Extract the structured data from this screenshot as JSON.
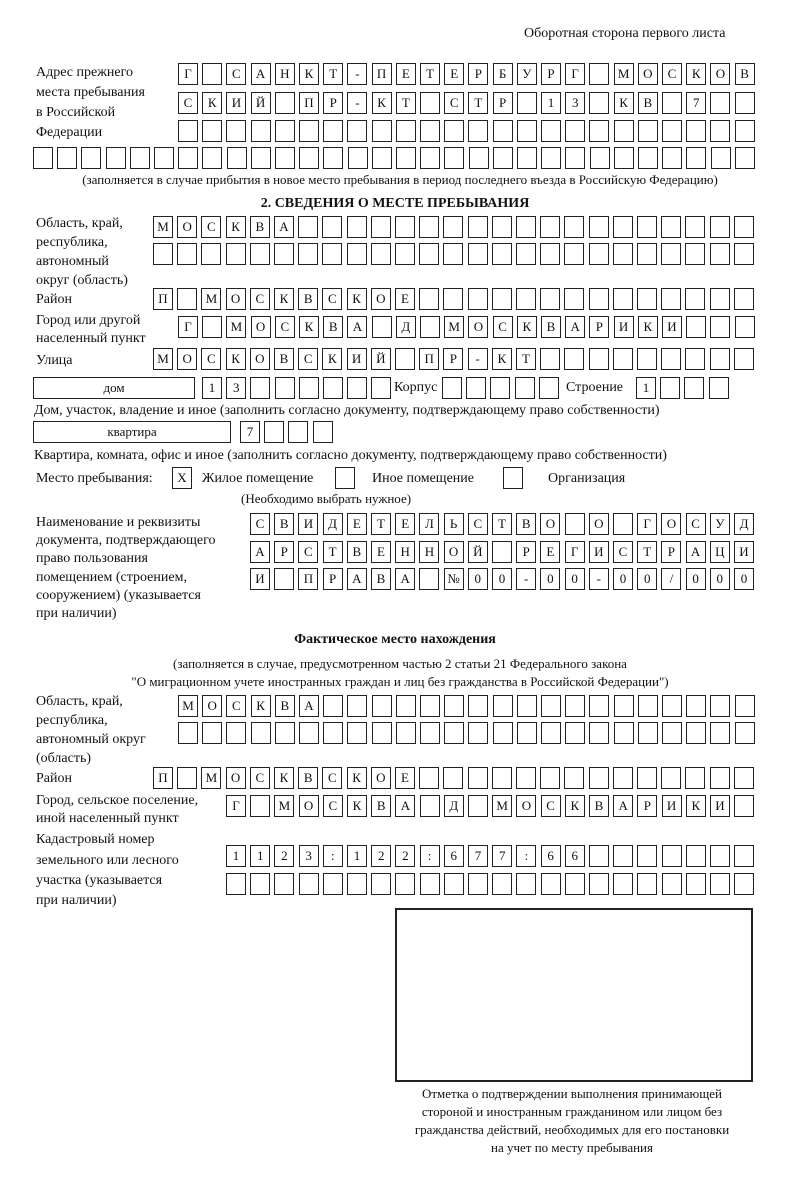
{
  "page_header": "Оборотная сторона первого листа",
  "previous_address": {
    "label": [
      "Адрес прежнего",
      "места пребывания",
      "в Российской",
      "Федерации"
    ],
    "rows": [
      [
        "Г",
        "",
        "С",
        "А",
        "Н",
        "К",
        "Т",
        "-",
        "П",
        "Е",
        "Т",
        "Е",
        "Р",
        "Б",
        "У",
        "Р",
        "Г",
        "",
        "М",
        "О",
        "С",
        "К",
        "О",
        "В"
      ],
      [
        "С",
        "К",
        "И",
        "Й",
        "",
        "П",
        "Р",
        "-",
        "К",
        "Т",
        "",
        "С",
        "Т",
        "Р",
        "",
        "1",
        "3",
        "",
        "К",
        "В",
        "",
        "7",
        "",
        ""
      ],
      [
        "",
        "",
        "",
        "",
        "",
        "",
        "",
        "",
        "",
        "",
        "",
        "",
        "",
        "",
        "",
        "",
        "",
        "",
        "",
        "",
        "",
        "",
        "",
        ""
      ],
      [
        "",
        "",
        "",
        "",
        "",
        "",
        "",
        "",
        "",
        "",
        "",
        "",
        "",
        "",
        "",
        "",
        "",
        "",
        "",
        "",
        "",
        "",
        "",
        "",
        "",
        "",
        "",
        "",
        "",
        ""
      ]
    ],
    "note": "(заполняется в случае прибытия в новое место пребывания в период последнего въезда в Российскую Федерацию)"
  },
  "section2": {
    "title": "2. СВЕДЕНИЯ О МЕСТЕ ПРЕБЫВАНИЯ",
    "region_label": [
      "Область, край,",
      "республика,",
      "автономный",
      "округ (область)"
    ],
    "region_rows": [
      [
        "М",
        "О",
        "С",
        "К",
        "В",
        "А",
        "",
        "",
        "",
        "",
        "",
        "",
        "",
        "",
        "",
        "",
        "",
        "",
        "",
        "",
        "",
        "",
        "",
        "",
        ""
      ],
      [
        "",
        "",
        "",
        "",
        "",
        "",
        "",
        "",
        "",
        "",
        "",
        "",
        "",
        "",
        "",
        "",
        "",
        "",
        "",
        "",
        "",
        "",
        "",
        "",
        ""
      ]
    ],
    "district_label": "Район",
    "district_row": [
      "П",
      "",
      "М",
      "О",
      "С",
      "К",
      "В",
      "С",
      "К",
      "О",
      "Е",
      "",
      "",
      "",
      "",
      "",
      "",
      "",
      "",
      "",
      "",
      "",
      "",
      "",
      ""
    ],
    "city_label": [
      "Город или другой",
      "населенный пункт"
    ],
    "city_row": [
      "Г",
      "",
      "М",
      "О",
      "С",
      "К",
      "В",
      "А",
      "",
      "Д",
      "",
      "М",
      "О",
      "С",
      "К",
      "В",
      "А",
      "Р",
      "И",
      "К",
      "И",
      "",
      "",
      ""
    ],
    "street_label": "Улица",
    "street_row": [
      "М",
      "О",
      "С",
      "К",
      "О",
      "В",
      "С",
      "К",
      "И",
      "Й",
      "",
      "П",
      "Р",
      "-",
      "К",
      "Т",
      "",
      "",
      "",
      "",
      "",
      "",
      "",
      "",
      ""
    ],
    "house_type": "дом",
    "house_number": [
      "1",
      "3",
      "",
      "",
      "",
      "",
      "",
      ""
    ],
    "korpus_label": "Корпус",
    "korpus": [
      "",
      "",
      "",
      "",
      ""
    ],
    "building_label": "Строение",
    "building": [
      "1",
      "",
      "",
      ""
    ],
    "house_note": "Дом, участок, владение и иное (заполнить согласно документу, подтверждающему право собственности)",
    "flat_type": "квартира",
    "flat_number": [
      "7",
      "",
      "",
      ""
    ],
    "flat_note": "Квартира, комната, офис и иное (заполнить согласно документу, подтверждающему право собственности)",
    "stay_label": "Место пребывания:",
    "stay_options": [
      {
        "label": "Жилое помещение",
        "mark": "X"
      },
      {
        "label": "Иное помещение",
        "mark": ""
      },
      {
        "label": "Организация",
        "mark": ""
      }
    ],
    "stay_note": "(Необходимо выбрать нужное)",
    "doc_label": [
      "Наименование и реквизиты",
      "документа, подтверждающего",
      "право пользования",
      "помещением (строением,",
      "сооружением) (указывается",
      "при наличии)"
    ],
    "doc_rows": [
      [
        "С",
        "В",
        "И",
        "Д",
        "Е",
        "Т",
        "Е",
        "Л",
        "Ь",
        "С",
        "Т",
        "В",
        "О",
        "",
        "О",
        "",
        "Г",
        "О",
        "С",
        "У",
        "Д"
      ],
      [
        "А",
        "Р",
        "С",
        "Т",
        "В",
        "Е",
        "Н",
        "Н",
        "О",
        "Й",
        "",
        "Р",
        "Е",
        "Г",
        "И",
        "С",
        "Т",
        "Р",
        "А",
        "Ц",
        "И"
      ],
      [
        "И",
        "",
        "П",
        "Р",
        "А",
        "В",
        "А",
        "",
        "№",
        "0",
        "0",
        "-",
        "0",
        "0",
        "-",
        "0",
        "0",
        "/",
        "0",
        "0",
        "0"
      ]
    ]
  },
  "actual": {
    "title": "Фактическое место нахождения",
    "note1": "(заполняется в случае, предусмотренном частью 2 статьи 21 Федерального закона",
    "note2": "\"О миграционном учете иностранных граждан и лиц без гражданства в Российской Федерации\")",
    "region_label": [
      "Область, край,",
      "республика,",
      "автономный округ",
      "(область)"
    ],
    "region_rows": [
      [
        "М",
        "О",
        "С",
        "К",
        "В",
        "А",
        "",
        "",
        "",
        "",
        "",
        "",
        "",
        "",
        "",
        "",
        "",
        "",
        "",
        "",
        "",
        "",
        "",
        ""
      ],
      [
        "",
        "",
        "",
        "",
        "",
        "",
        "",
        "",
        "",
        "",
        "",
        "",
        "",
        "",
        "",
        "",
        "",
        "",
        "",
        "",
        "",
        "",
        "",
        ""
      ]
    ],
    "district_label": "Район",
    "district_row": [
      "П",
      "",
      "М",
      "О",
      "С",
      "К",
      "В",
      "С",
      "К",
      "О",
      "Е",
      "",
      "",
      "",
      "",
      "",
      "",
      "",
      "",
      "",
      "",
      "",
      "",
      "",
      ""
    ],
    "city_label": [
      "Город, сельское поселение,",
      "иной населенный пункт"
    ],
    "city_row": [
      "Г",
      "",
      "М",
      "О",
      "С",
      "К",
      "В",
      "А",
      "",
      "Д",
      "",
      "М",
      "О",
      "С",
      "К",
      "В",
      "А",
      "Р",
      "И",
      "К",
      "И",
      ""
    ],
    "cadastral_label": [
      "Кадастровый номер",
      "земельного или лесного",
      "участка (указывается",
      "при наличии)"
    ],
    "cadastral_rows": [
      [
        "1",
        "1",
        "2",
        "3",
        ":",
        "1",
        "2",
        "2",
        ":",
        "6",
        "7",
        "7",
        ":",
        "6",
        "6",
        "",
        "",
        "",
        "",
        "",
        "",
        ""
      ],
      [
        "",
        "",
        "",
        "",
        "",
        "",
        "",
        "",
        "",
        "",
        "",
        "",
        "",
        "",
        "",
        "",
        "",
        "",
        "",
        "",
        "",
        ""
      ]
    ]
  },
  "stamp_caption": [
    "Отметка о подтверждении выполнения принимающей",
    "стороной и иностранным гражданином или лицом без",
    "гражданства действий, необходимых для его постановки",
    "на учет по месту пребывания"
  ]
}
